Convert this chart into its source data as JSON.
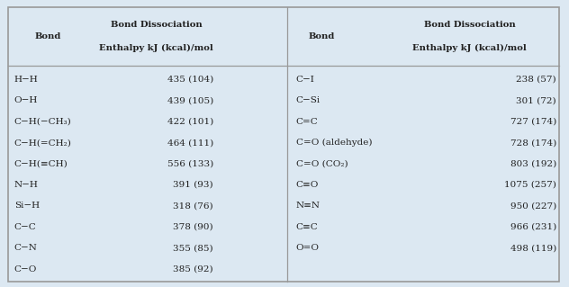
{
  "bg_color": "#dce8f2",
  "border_color": "#999999",
  "text_color": "#222222",
  "figsize": [
    6.32,
    3.19
  ],
  "dpi": 100,
  "col1_header": "Bond",
  "col2_header": "Bond Dissociation\nEnthalpy kJ (kcal)/mol",
  "col3_header": "Bond",
  "col4_header": "Bond Dissociation\nEnthalpy kJ (kcal)/mol",
  "left_bonds": [
    "H−H",
    "O−H",
    "C−H(−CH₃)",
    "C−H(=CH₂)",
    "C−H(≡CH)",
    "N−H",
    "Si−H",
    "C−C",
    "C−N",
    "C−O"
  ],
  "left_values": [
    "435 (104)",
    "439 (105)",
    "422 (101)",
    "464 (111)",
    "556 (133)",
    "391 (93)",
    "318 (76)",
    "378 (90)",
    "355 (85)",
    "385 (92)"
  ],
  "right_bonds": [
    "C−I",
    "C−Si",
    "C=C",
    "C=O (aldehyde)",
    "C=O (CO₂)",
    "C≡O",
    "N≡N",
    "C≡C",
    "O=O",
    ""
  ],
  "right_values": [
    "238 (57)",
    "301 (72)",
    "727 (174)",
    "728 (174)",
    "803 (192)",
    "1075 (257)",
    "950 (227)",
    "966 (231)",
    "498 (119)",
    ""
  ]
}
